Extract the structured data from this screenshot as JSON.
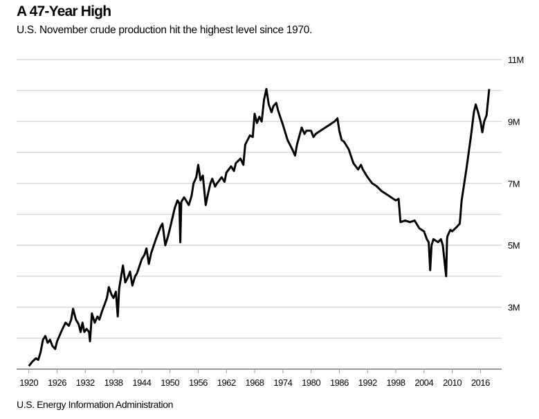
{
  "chart_data": {
    "type": "line",
    "title": "A 47-Year High",
    "subtitle": "U.S. November crude production hit the highest level since 1970.",
    "source": "U.S. Energy Information Administration",
    "xlabel": "",
    "ylabel": "",
    "xlim": [
      1917.4,
      2020.5
    ],
    "ylim": [
      1,
      11
    ],
    "x_ticks": [
      "1920",
      "1926",
      "1932",
      "1938",
      "1944",
      "1950",
      "1956",
      "1962",
      "1968",
      "1974",
      "1980",
      "1986",
      "1992",
      "1998",
      "2004",
      "2010",
      "2016"
    ],
    "y_ticks": [
      {
        "value": 11,
        "label": "11M"
      },
      {
        "value": 9,
        "label": "9M"
      },
      {
        "value": 7,
        "label": "7M"
      },
      {
        "value": 5,
        "label": "5M"
      },
      {
        "value": 3,
        "label": "3M"
      }
    ],
    "y_gridlines": [
      2,
      3,
      4,
      5,
      6,
      7,
      8,
      9,
      10,
      11
    ],
    "grid": true,
    "line_color": "#000000",
    "grid_color": "#d9d9d9",
    "series": [
      {
        "points": [
          [
            1920,
            1.1
          ],
          [
            1920.8,
            1.25
          ],
          [
            1921.5,
            1.35
          ],
          [
            1922,
            1.3
          ],
          [
            1922.5,
            1.55
          ],
          [
            1923,
            1.95
          ],
          [
            1923.5,
            2.07
          ],
          [
            1924,
            1.85
          ],
          [
            1924.5,
            1.95
          ],
          [
            1925,
            1.75
          ],
          [
            1925.6,
            1.65
          ],
          [
            1926,
            1.9
          ],
          [
            1927,
            2.25
          ],
          [
            1927.8,
            2.5
          ],
          [
            1928.5,
            2.4
          ],
          [
            1929,
            2.6
          ],
          [
            1929.4,
            2.95
          ],
          [
            1930,
            2.6
          ],
          [
            1930.6,
            2.45
          ],
          [
            1931,
            2.2
          ],
          [
            1931.4,
            2.5
          ],
          [
            1931.8,
            2.2
          ],
          [
            1932.3,
            2.3
          ],
          [
            1932.8,
            2.2
          ],
          [
            1933,
            1.9
          ],
          [
            1933.4,
            2.8
          ],
          [
            1934,
            2.5
          ],
          [
            1934.6,
            2.7
          ],
          [
            1935,
            2.6
          ],
          [
            1935.5,
            2.85
          ],
          [
            1936,
            3.05
          ],
          [
            1936.6,
            3.3
          ],
          [
            1937,
            3.65
          ],
          [
            1937.6,
            3.4
          ],
          [
            1938,
            3.3
          ],
          [
            1938.5,
            3.5
          ],
          [
            1938.9,
            2.7
          ],
          [
            1939.2,
            3.6
          ],
          [
            1940,
            4.35
          ],
          [
            1940.5,
            3.8
          ],
          [
            1941,
            3.95
          ],
          [
            1941.5,
            4.15
          ],
          [
            1942,
            3.7
          ],
          [
            1942.6,
            4.0
          ],
          [
            1943,
            4.1
          ],
          [
            1944,
            4.55
          ],
          [
            1944.6,
            4.7
          ],
          [
            1945,
            4.9
          ],
          [
            1945.5,
            4.4
          ],
          [
            1946,
            4.75
          ],
          [
            1947,
            5.2
          ],
          [
            1948,
            5.6
          ],
          [
            1948.4,
            5.7
          ],
          [
            1949,
            5.0
          ],
          [
            1949.6,
            5.3
          ],
          [
            1950,
            5.55
          ],
          [
            1951,
            6.2
          ],
          [
            1951.6,
            6.45
          ],
          [
            1952,
            6.35
          ],
          [
            1952.2,
            5.1
          ],
          [
            1952.4,
            6.4
          ],
          [
            1953,
            6.55
          ],
          [
            1954,
            6.3
          ],
          [
            1954.6,
            6.6
          ],
          [
            1955,
            7.0
          ],
          [
            1955.6,
            7.2
          ],
          [
            1956,
            7.6
          ],
          [
            1956.5,
            7.1
          ],
          [
            1957,
            7.25
          ],
          [
            1957.6,
            6.3
          ],
          [
            1958,
            6.6
          ],
          [
            1958.6,
            7.0
          ],
          [
            1959,
            7.15
          ],
          [
            1959.6,
            6.9
          ],
          [
            1960,
            7.0
          ],
          [
            1961,
            7.2
          ],
          [
            1961.6,
            7.05
          ],
          [
            1962,
            7.35
          ],
          [
            1963,
            7.55
          ],
          [
            1963.6,
            7.4
          ],
          [
            1964,
            7.65
          ],
          [
            1965,
            7.8
          ],
          [
            1965.6,
            7.6
          ],
          [
            1966,
            8.25
          ],
          [
            1967,
            8.55
          ],
          [
            1967.6,
            8.5
          ],
          [
            1968,
            9.25
          ],
          [
            1968.5,
            8.95
          ],
          [
            1969,
            9.15
          ],
          [
            1969.5,
            9.0
          ],
          [
            1970,
            9.7
          ],
          [
            1970.5,
            10.05
          ],
          [
            1971,
            9.55
          ],
          [
            1971.6,
            9.3
          ],
          [
            1972,
            9.5
          ],
          [
            1972.6,
            9.6
          ],
          [
            1973,
            9.35
          ],
          [
            1974,
            8.9
          ],
          [
            1974.6,
            8.6
          ],
          [
            1975,
            8.4
          ],
          [
            1976,
            8.1
          ],
          [
            1976.6,
            7.9
          ],
          [
            1977,
            8.25
          ],
          [
            1978,
            8.8
          ],
          [
            1978.6,
            8.6
          ],
          [
            1979,
            8.7
          ],
          [
            1980,
            8.7
          ],
          [
            1980.5,
            8.5
          ],
          [
            1981,
            8.6
          ],
          [
            1982,
            8.7
          ],
          [
            1983,
            8.8
          ],
          [
            1984,
            8.9
          ],
          [
            1985,
            9.0
          ],
          [
            1985.6,
            9.1
          ],
          [
            1986,
            8.7
          ],
          [
            1986.5,
            8.4
          ],
          [
            1987,
            8.35
          ],
          [
            1988,
            8.1
          ],
          [
            1989,
            7.65
          ],
          [
            1990,
            7.45
          ],
          [
            1990.6,
            7.6
          ],
          [
            1991,
            7.45
          ],
          [
            1992,
            7.2
          ],
          [
            1993,
            7.0
          ],
          [
            1994,
            6.9
          ],
          [
            1995,
            6.75
          ],
          [
            1996,
            6.65
          ],
          [
            1997,
            6.55
          ],
          [
            1998,
            6.45
          ],
          [
            1998.6,
            6.5
          ],
          [
            1999,
            5.75
          ],
          [
            2000,
            5.8
          ],
          [
            2001,
            5.75
          ],
          [
            2002,
            5.8
          ],
          [
            2003,
            5.55
          ],
          [
            2004,
            5.45
          ],
          [
            2004.6,
            5.2
          ],
          [
            2005,
            5.1
          ],
          [
            2005.3,
            4.2
          ],
          [
            2005.6,
            5.0
          ],
          [
            2006,
            5.2
          ],
          [
            2007,
            5.1
          ],
          [
            2007.6,
            5.2
          ],
          [
            2008,
            5.0
          ],
          [
            2008.7,
            4.0
          ],
          [
            2008.9,
            5.2
          ],
          [
            2009,
            5.3
          ],
          [
            2009.6,
            5.5
          ],
          [
            2010,
            5.45
          ],
          [
            2011,
            5.6
          ],
          [
            2011.6,
            5.7
          ],
          [
            2012,
            6.45
          ],
          [
            2013,
            7.45
          ],
          [
            2014,
            8.55
          ],
          [
            2014.6,
            9.3
          ],
          [
            2015,
            9.55
          ],
          [
            2015.5,
            9.3
          ],
          [
            2016,
            9.0
          ],
          [
            2016.4,
            8.65
          ],
          [
            2016.8,
            9.0
          ],
          [
            2017.3,
            9.2
          ],
          [
            2017.85,
            10.05
          ]
        ]
      }
    ]
  }
}
